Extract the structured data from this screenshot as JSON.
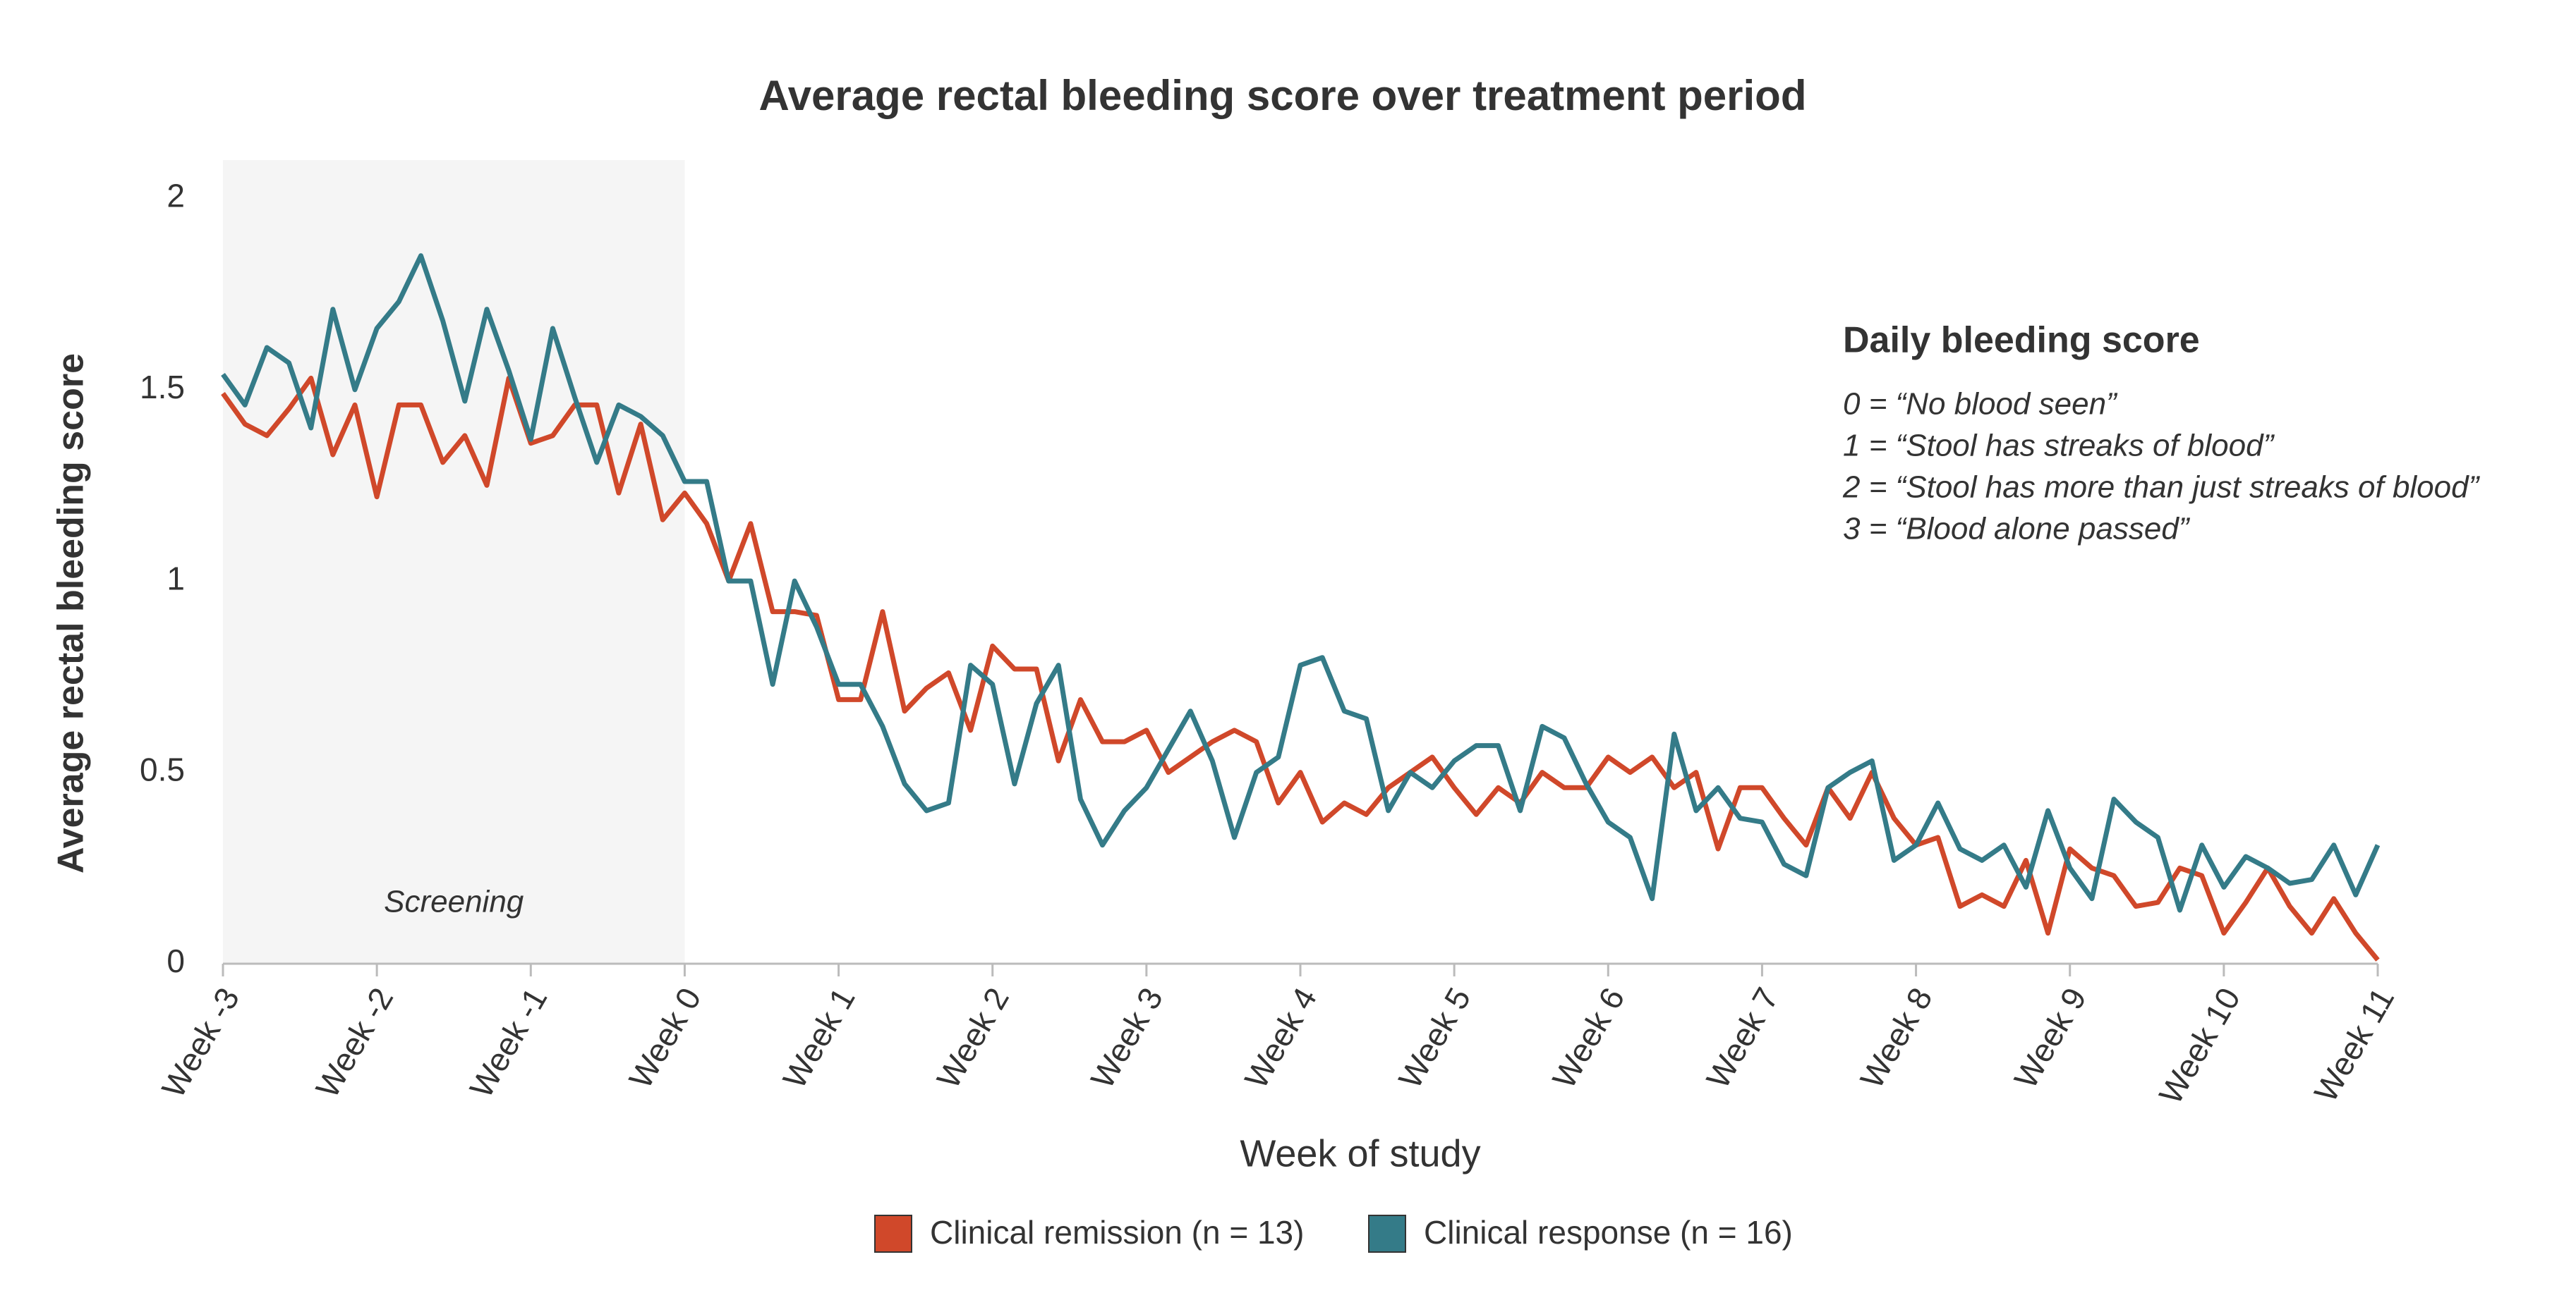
{
  "chart_data": {
    "type": "line",
    "title": "Average rectal bleeding score over treatment period",
    "xlabel": "Week of study",
    "ylabel": "Average rectal bleeding score",
    "x": [
      -21,
      -20,
      -19,
      -18,
      -17,
      -16,
      -15,
      -14,
      -13,
      -12,
      -11,
      -10,
      -9,
      -8,
      -7,
      -6,
      -5,
      -4,
      -3,
      -2,
      -1,
      0,
      1,
      2,
      3,
      4,
      5,
      6,
      7,
      8,
      9,
      10,
      11,
      12,
      13,
      14,
      15,
      16,
      17,
      18,
      19,
      20,
      21,
      22,
      23,
      24,
      25,
      26,
      27,
      28,
      29,
      30,
      31,
      32,
      33,
      34,
      35,
      36,
      37,
      38,
      39,
      40,
      41,
      42,
      43,
      44,
      45,
      46,
      47,
      48,
      49,
      50,
      51,
      52,
      53,
      54,
      55,
      56,
      57,
      58,
      59,
      60,
      61,
      62,
      63,
      64,
      65,
      66,
      67,
      68,
      69,
      70,
      71,
      72,
      73,
      74,
      75,
      76,
      77
    ],
    "series": [
      {
        "name": "Clinical remission (n = 13)",
        "color": "#d0482a",
        "values": [
          1.49,
          1.41,
          1.38,
          1.45,
          1.53,
          1.33,
          1.46,
          1.22,
          1.46,
          1.46,
          1.31,
          1.38,
          1.25,
          1.53,
          1.36,
          1.38,
          1.46,
          1.46,
          1.23,
          1.41,
          1.16,
          1.23,
          1.15,
          1.0,
          1.15,
          0.92,
          0.92,
          0.91,
          0.69,
          0.69,
          0.92,
          0.66,
          0.72,
          0.76,
          0.61,
          0.83,
          0.77,
          0.77,
          0.53,
          0.69,
          0.58,
          0.58,
          0.61,
          0.5,
          0.54,
          0.58,
          0.61,
          0.58,
          0.42,
          0.5,
          0.37,
          0.42,
          0.39,
          0.46,
          0.5,
          0.54,
          0.46,
          0.39,
          0.46,
          0.42,
          0.5,
          0.46,
          0.46,
          0.54,
          0.5,
          0.54,
          0.46,
          0.5,
          0.3,
          0.46,
          0.46,
          0.38,
          0.31,
          0.46,
          0.38,
          0.5,
          0.38,
          0.31,
          0.33,
          0.15,
          0.18,
          0.15,
          0.27,
          0.08,
          0.3,
          0.25,
          0.23,
          0.15,
          0.16,
          0.25,
          0.23,
          0.08,
          0.16,
          0.25,
          0.15,
          0.08,
          0.17,
          0.08,
          0.01
        ]
      },
      {
        "name": "Clinical response (n = 16)",
        "color": "#347b88",
        "values": [
          1.54,
          1.46,
          1.61,
          1.57,
          1.4,
          1.71,
          1.5,
          1.66,
          1.73,
          1.85,
          1.68,
          1.47,
          1.71,
          1.55,
          1.37,
          1.66,
          1.48,
          1.31,
          1.46,
          1.43,
          1.38,
          1.26,
          1.26,
          1.0,
          1.0,
          0.73,
          1.0,
          0.88,
          0.73,
          0.73,
          0.62,
          0.47,
          0.4,
          0.42,
          0.78,
          0.73,
          0.47,
          0.68,
          0.78,
          0.43,
          0.31,
          0.4,
          0.46,
          0.56,
          0.66,
          0.53,
          0.33,
          0.5,
          0.54,
          0.78,
          0.8,
          0.66,
          0.64,
          0.4,
          0.5,
          0.46,
          0.53,
          0.57,
          0.57,
          0.4,
          0.62,
          0.59,
          0.47,
          0.37,
          0.33,
          0.17,
          0.6,
          0.4,
          0.46,
          0.38,
          0.37,
          0.26,
          0.23,
          0.46,
          0.5,
          0.53,
          0.27,
          0.31,
          0.42,
          0.3,
          0.27,
          0.31,
          0.2,
          0.4,
          0.25,
          0.17,
          0.43,
          0.37,
          0.33,
          0.14,
          0.31,
          0.2,
          0.28,
          0.25,
          0.21,
          0.22,
          0.31,
          0.18,
          0.31
        ]
      }
    ],
    "xlim": [
      -21,
      77
    ],
    "xticks": [
      {
        "value": -21,
        "label": "Week -3"
      },
      {
        "value": -14,
        "label": "Week -2"
      },
      {
        "value": -7,
        "label": "Week -1"
      },
      {
        "value": 0,
        "label": "Week 0"
      },
      {
        "value": 7,
        "label": "Week 1"
      },
      {
        "value": 14,
        "label": "Week 2"
      },
      {
        "value": 21,
        "label": "Week 3"
      },
      {
        "value": 28,
        "label": "Week 4"
      },
      {
        "value": 35,
        "label": "Week 5"
      },
      {
        "value": 42,
        "label": "Week 6"
      },
      {
        "value": 49,
        "label": "Week 7"
      },
      {
        "value": 56,
        "label": "Week 8"
      },
      {
        "value": 63,
        "label": "Week 9"
      },
      {
        "value": 70,
        "label": "Week 10"
      },
      {
        "value": 77,
        "label": "Week 11"
      }
    ],
    "ylim": [
      0,
      2.1
    ],
    "yticks": [
      0,
      0.5,
      1,
      1.5,
      2
    ],
    "shaded_region": {
      "label": "Screening",
      "x": [
        -21,
        0
      ]
    },
    "annotation": {
      "title": "Daily bleeding score",
      "lines": [
        "0 = “No blood seen”",
        "1 = “Stool has streaks of blood”",
        "2 = “Stool has more than just streaks of blood”",
        "3 = “Blood alone passed”"
      ]
    },
    "legend": "bottom"
  }
}
